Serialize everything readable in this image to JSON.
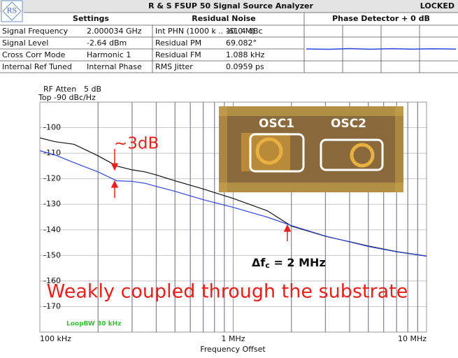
{
  "header": {
    "logo": "RS",
    "title": "R & S FSUP 50 Signal Source Analyzer",
    "status": "LOCKED",
    "settings": {
      "title": "Settings",
      "rows": [
        [
          "Signal Frequency",
          "2.000034 GHz"
        ],
        [
          "Signal Level",
          "-2.64 dBm"
        ],
        [
          "Cross Corr Mode",
          "Harmonic 1"
        ],
        [
          "Internal Ref Tuned",
          "Internal Phase"
        ]
      ]
    },
    "residual_noise": {
      "title": "Residual Noise",
      "rows": [
        [
          "Int PHN (1000 k .. 10.0 M)",
          "-61.4 dBc"
        ],
        [
          "Residual PM",
          "69.082°"
        ],
        [
          "Residual FM",
          "1.088 kHz"
        ],
        [
          "RMS Jitter",
          "0.0959 ps"
        ]
      ]
    },
    "phase_detector": "Phase Detector + 0 dB"
  },
  "chart_data": {
    "type": "line",
    "rf_atten": [
      "RF Atten",
      "5 dB"
    ],
    "top": "Top -90 dBc/Hz",
    "x_label": "Frequency Offset",
    "loop_bw": "LoopBW 30 kHz",
    "annotations": {
      "delta": "~3dB",
      "corner": [
        "Δf",
        "c",
        " = 2 MHz"
      ],
      "caption": "Weakly coupled through the substrate",
      "osc": [
        "OSC1",
        "OSC2"
      ]
    },
    "x_log": true,
    "xlim": [
      100000,
      10000000
    ],
    "xticks": [
      {
        "value": 100000,
        "label": "100 kHz"
      },
      {
        "value": 1000000,
        "label": "1 MHz"
      },
      {
        "value": 10000000,
        "label": "10 MHz"
      }
    ],
    "x_minor_ticks": [
      200000,
      300000,
      400000,
      500000,
      600000,
      700000,
      800000,
      900000,
      2000000,
      3000000,
      4000000,
      5000000,
      6000000,
      7000000,
      8000000,
      9000000
    ],
    "ylim": [
      -180,
      -90
    ],
    "yticks": [
      -170,
      -160,
      -150,
      -140,
      -130,
      -120,
      -110,
      -100
    ],
    "grid": true,
    "x": [
      100000,
      120000,
      150000,
      200000,
      250000,
      300000,
      350000,
      400000,
      500000,
      700000,
      1000000,
      1500000,
      2000000,
      3000000,
      5000000,
      7000000,
      10000000
    ],
    "series": [
      {
        "color": "#111111",
        "values": [
          -104,
          -105.5,
          -106.5,
          -111,
          -115,
          -116.5,
          -117.3,
          -118.5,
          -120.8,
          -124,
          -127.7,
          -132.5,
          -138.5,
          -142.5,
          -146.3,
          -148.5,
          -150.2
        ]
      },
      {
        "color": "#2f45d8",
        "values": [
          -109,
          -110.7,
          -113.7,
          -117.3,
          -120.8,
          -121,
          -121.8,
          -123,
          -124.9,
          -128.2,
          -131.2,
          -135,
          -138.3,
          -142.4,
          -146.5,
          -148.6,
          -150.3
        ]
      }
    ]
  }
}
